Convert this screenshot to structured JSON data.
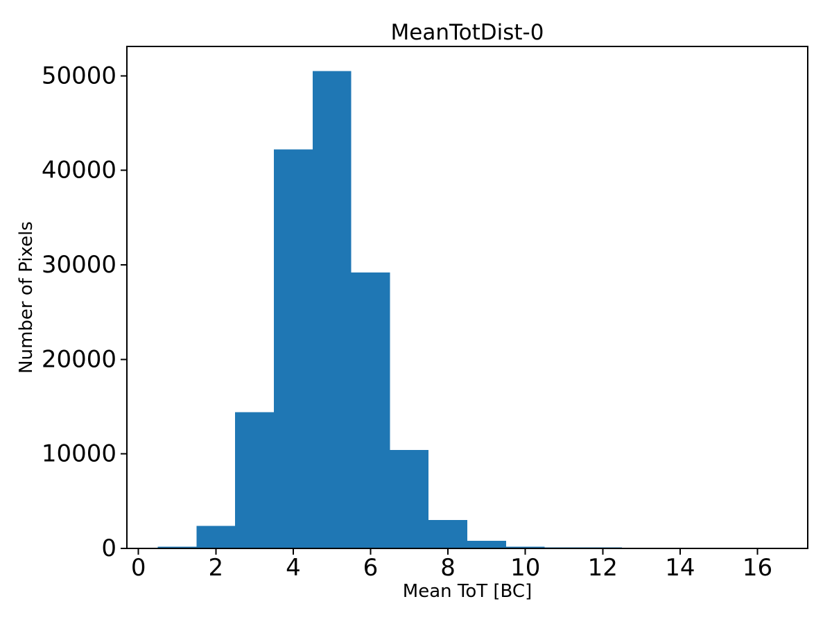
{
  "figure": {
    "background": "#ffffff"
  },
  "chart_data": {
    "type": "bar",
    "subtype": "histogram",
    "title": "MeanTotDist-0",
    "xlabel": "Mean ToT [BC]",
    "ylabel": "Number of Pixels",
    "bin_edges": [
      0.5,
      1.5,
      2.5,
      3.5,
      4.5,
      5.5,
      6.5,
      7.5,
      8.5,
      9.5,
      10.5,
      11.5,
      12.5,
      13.5,
      14.5,
      15.5,
      16.5
    ],
    "counts": [
      200,
      2400,
      14400,
      42200,
      50500,
      29200,
      10400,
      3000,
      800,
      200,
      100,
      100,
      0,
      0,
      0,
      0
    ],
    "x_ticks": [
      0,
      2,
      4,
      6,
      8,
      10,
      12,
      14,
      16
    ],
    "y_ticks": [
      0,
      10000,
      20000,
      30000,
      40000,
      50000
    ],
    "xlim": [
      -0.3,
      17.3
    ],
    "ylim": [
      0,
      53100
    ],
    "grid": false,
    "legend": null,
    "bar_color": "#1f77b4",
    "axis_color": "#000000",
    "text_color": "#000000"
  }
}
